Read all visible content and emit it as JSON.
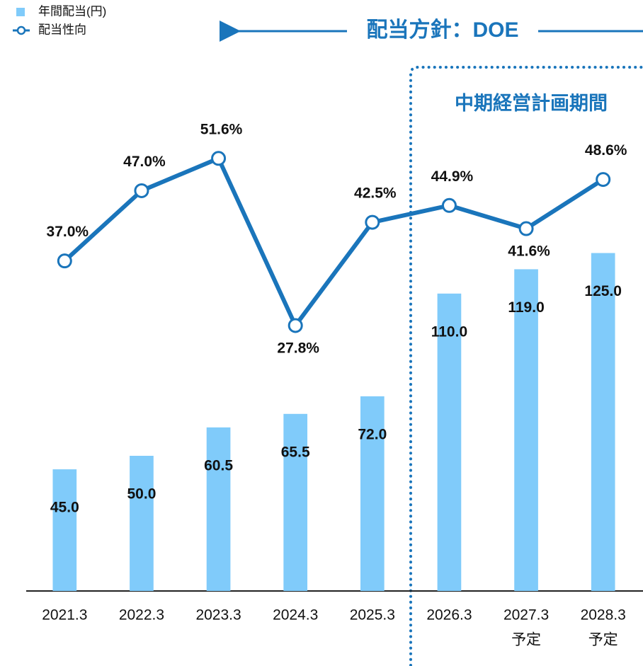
{
  "chart_data": {
    "type": "bar_line",
    "categories": [
      "2021.3",
      "2022.3",
      "2023.3",
      "2024.3",
      "2025.3",
      "2026.3",
      "2027.3",
      "2028.3"
    ],
    "category_notes": [
      null,
      null,
      null,
      null,
      null,
      null,
      "予定",
      "予定"
    ],
    "annotations": [
      "配当方針：DOE",
      "中期経営計画期間"
    ],
    "ylim": [
      0,
      200
    ],
    "y2lim": [
      -10,
      67
    ],
    "series": [
      {
        "name": "年間配当(円)",
        "type": "bar",
        "color": "#80cbfa",
        "values": [
          45,
          50,
          60.5,
          65.5,
          72,
          110,
          119,
          125
        ],
        "value_labels": [
          "45.0",
          "50.0",
          "60.5",
          "65.5",
          "72.0",
          "110.0",
          "119.0",
          "125.0"
        ]
      },
      {
        "name": "配当性向",
        "type": "line",
        "axis": "y2",
        "color": "#1a75bb",
        "values": [
          37,
          47,
          51.6,
          27.8,
          42.5,
          44.9,
          41.6,
          48.6
        ],
        "value_labels": [
          "37.0%",
          "47.0%",
          "51.6%",
          "27.8%",
          "42.5%",
          "44.9%",
          "41.6%",
          "48.6%"
        ]
      }
    ]
  }
}
